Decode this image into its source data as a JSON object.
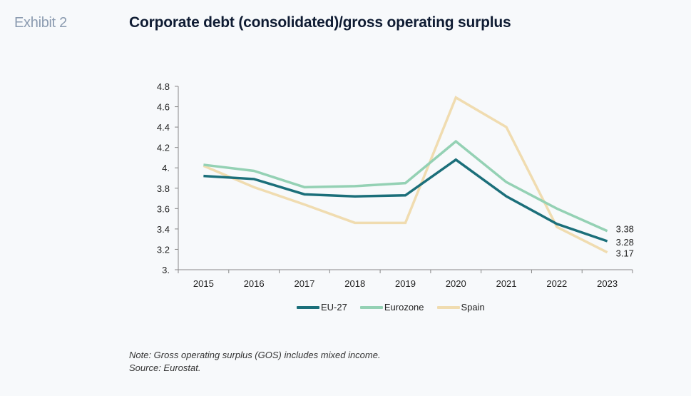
{
  "header": {
    "exhibit": "Exhibit 2",
    "title": "Corporate debt (consolidated)/gross operating surplus"
  },
  "notes": {
    "note": "Note: Gross operating surplus (GOS) includes mixed income.",
    "source": "Source: Eurostat."
  },
  "chart_data": {
    "type": "line",
    "title": "Corporate debt (consolidated)/gross operating surplus",
    "xlabel": "",
    "ylabel": "",
    "ylim": [
      3.0,
      4.8
    ],
    "yticks": [
      3.0,
      3.2,
      3.4,
      3.6,
      3.8,
      4.0,
      4.2,
      4.4,
      4.6,
      4.8
    ],
    "ytick_labels": [
      "3.",
      "3.2",
      "3.4",
      "3.6",
      "3.8",
      "4.",
      "4.2",
      "4.4",
      "4.6",
      "4.8"
    ],
    "categories": [
      "2015",
      "2016",
      "2017",
      "2018",
      "2019",
      "2020",
      "2021",
      "2022",
      "2023"
    ],
    "grid": false,
    "legend_position": "bottom-center",
    "series": [
      {
        "name": "EU-27",
        "color": "#1b6f7a",
        "values": [
          3.92,
          3.89,
          3.74,
          3.72,
          3.73,
          4.08,
          3.72,
          3.45,
          3.28
        ],
        "end_label": "3.28"
      },
      {
        "name": "Eurozone",
        "color": "#94d1b4",
        "values": [
          4.03,
          3.97,
          3.81,
          3.82,
          3.85,
          4.26,
          3.86,
          3.6,
          3.38
        ],
        "end_label": "3.38"
      },
      {
        "name": "Spain",
        "color": "#f0dcb0",
        "values": [
          4.02,
          3.81,
          3.64,
          3.46,
          3.46,
          4.69,
          4.4,
          3.42,
          3.17
        ],
        "end_label": "3.17"
      }
    ]
  }
}
